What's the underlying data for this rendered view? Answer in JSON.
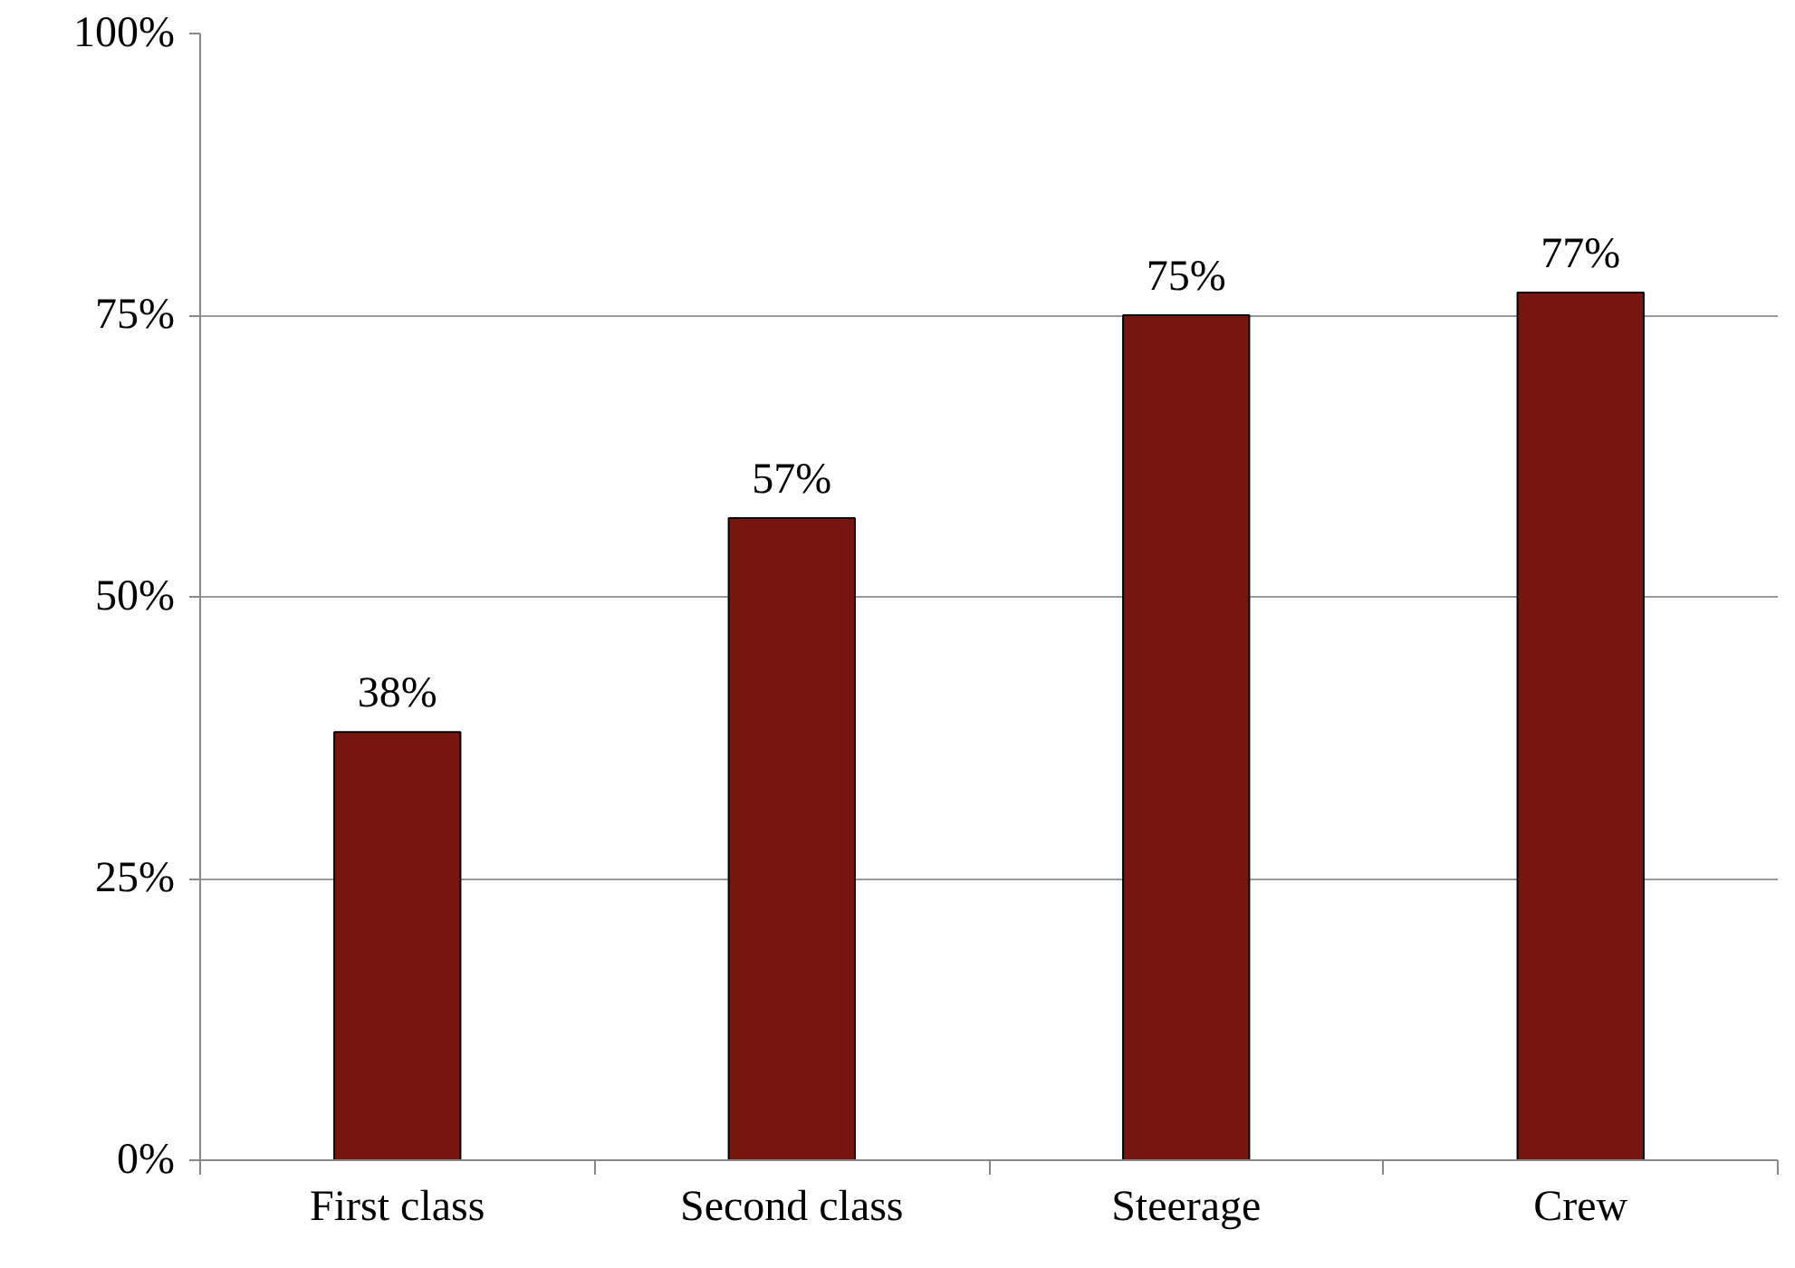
{
  "chart_data": {
    "type": "bar",
    "categories": [
      "First class",
      "Second class",
      "Steerage",
      "Crew"
    ],
    "values": [
      38,
      57,
      75,
      77
    ],
    "color": "#76160f",
    "value_labels": [
      "38%",
      "57%",
      "75%",
      "77%"
    ],
    "ylim": [
      0,
      100
    ],
    "yticks": [
      {
        "value": 0,
        "label": "0%"
      },
      {
        "value": 25,
        "label": "25%"
      },
      {
        "value": 50,
        "label": "50%"
      },
      {
        "value": 75,
        "label": "75%"
      },
      {
        "value": 100,
        "label": "100%"
      }
    ],
    "grid": "y"
  }
}
